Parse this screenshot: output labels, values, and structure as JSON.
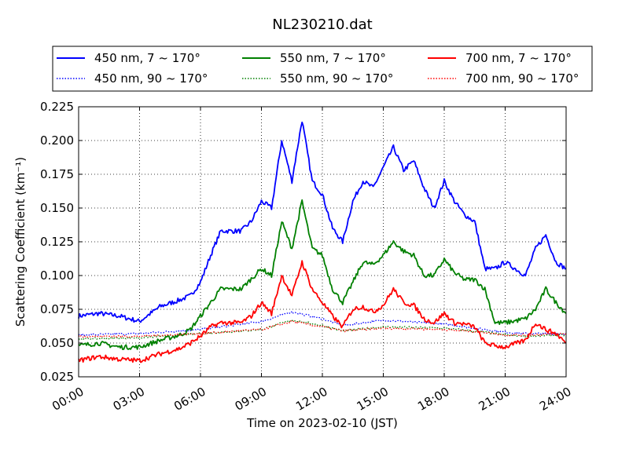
{
  "chart_data": {
    "type": "line",
    "title": "NL230210.dat",
    "xlabel": "Time on 2023-02-10 (JST)",
    "ylabel": "Scattering Coefficient (km⁻¹)",
    "x_unit": "hours",
    "xlim": [
      0,
      24
    ],
    "ylim": [
      0.025,
      0.225
    ],
    "x_ticks": [
      0,
      3,
      6,
      9,
      12,
      15,
      18,
      21,
      24
    ],
    "x_tick_labels": [
      "00:00",
      "03:00",
      "06:00",
      "09:00",
      "12:00",
      "15:00",
      "18:00",
      "21:00",
      "24:00"
    ],
    "y_ticks": [
      0.025,
      0.05,
      0.075,
      0.1,
      0.125,
      0.15,
      0.175,
      0.2,
      0.225
    ],
    "y_tick_labels": [
      "0.025",
      "0.050",
      "0.075",
      "0.100",
      "0.125",
      "0.150",
      "0.175",
      "0.200",
      "0.225"
    ],
    "grid": true,
    "legend_position": "top, above plot, 3 columns",
    "series": [
      {
        "name": "450 nm, 7 ~ 170°",
        "color": "#0000ff",
        "style": "solid",
        "x": [
          0,
          1,
          2,
          3,
          4,
          5,
          5.5,
          6,
          6.5,
          7,
          8,
          8.5,
          9,
          9.5,
          10,
          10.5,
          11,
          11.5,
          12,
          12.5,
          13,
          13.5,
          14,
          14.5,
          15,
          15.5,
          16,
          16.5,
          17,
          17.5,
          18,
          18.5,
          19,
          19.5,
          20,
          20.5,
          21,
          22,
          22.5,
          23,
          23.5,
          24
        ],
        "values": [
          0.07,
          0.072,
          0.07,
          0.066,
          0.077,
          0.082,
          0.085,
          0.095,
          0.115,
          0.133,
          0.133,
          0.14,
          0.155,
          0.15,
          0.2,
          0.17,
          0.215,
          0.17,
          0.16,
          0.135,
          0.125,
          0.155,
          0.17,
          0.165,
          0.18,
          0.195,
          0.178,
          0.185,
          0.165,
          0.15,
          0.17,
          0.155,
          0.145,
          0.14,
          0.105,
          0.105,
          0.11,
          0.1,
          0.12,
          0.13,
          0.11,
          0.105
        ]
      },
      {
        "name": "450 nm, 90 ~ 170°",
        "color": "#0000ff",
        "style": "dotted",
        "x": [
          0,
          3,
          6,
          9,
          10.5,
          12,
          13,
          15,
          18,
          20,
          21,
          22,
          24
        ],
        "values": [
          0.056,
          0.057,
          0.06,
          0.066,
          0.073,
          0.068,
          0.063,
          0.067,
          0.064,
          0.06,
          0.058,
          0.057,
          0.057
        ]
      },
      {
        "name": "550 nm, 7 ~ 170°",
        "color": "#008000",
        "style": "solid",
        "x": [
          0,
          1,
          2,
          3,
          4,
          5,
          5.5,
          6,
          6.5,
          7,
          8,
          9,
          9.5,
          10,
          10.5,
          11,
          11.5,
          12,
          12.5,
          13,
          13.5,
          14,
          14.5,
          15,
          15.5,
          16,
          16.5,
          17,
          17.5,
          18,
          18.5,
          19,
          19.5,
          20,
          20.5,
          21,
          22,
          22.5,
          23,
          23.5,
          24
        ],
        "values": [
          0.048,
          0.05,
          0.047,
          0.047,
          0.052,
          0.056,
          0.06,
          0.07,
          0.08,
          0.09,
          0.09,
          0.105,
          0.1,
          0.14,
          0.12,
          0.155,
          0.12,
          0.115,
          0.09,
          0.08,
          0.095,
          0.11,
          0.108,
          0.115,
          0.125,
          0.118,
          0.115,
          0.1,
          0.1,
          0.112,
          0.102,
          0.097,
          0.097,
          0.09,
          0.065,
          0.065,
          0.068,
          0.075,
          0.09,
          0.08,
          0.072
        ]
      },
      {
        "name": "550 nm, 90 ~ 170°",
        "color": "#008000",
        "style": "dotted",
        "x": [
          0,
          3,
          6,
          9,
          10.5,
          12,
          13,
          15,
          18,
          20,
          21,
          22,
          24
        ],
        "values": [
          0.053,
          0.054,
          0.057,
          0.06,
          0.067,
          0.063,
          0.059,
          0.062,
          0.061,
          0.058,
          0.056,
          0.055,
          0.056
        ]
      },
      {
        "name": "700 nm, 7 ~ 170°",
        "color": "#ff0000",
        "style": "solid",
        "x": [
          0,
          1,
          2,
          3,
          4,
          5,
          5.5,
          6,
          6.5,
          7,
          8,
          8.5,
          9,
          9.5,
          10,
          10.5,
          11,
          11.5,
          12,
          12.5,
          13,
          13.5,
          14,
          14.5,
          15,
          15.5,
          16,
          16.5,
          17,
          17.5,
          18,
          18.5,
          19,
          19.5,
          20,
          20.5,
          21,
          22,
          22.5,
          23,
          23.5,
          24
        ],
        "values": [
          0.037,
          0.04,
          0.038,
          0.037,
          0.042,
          0.046,
          0.05,
          0.055,
          0.062,
          0.065,
          0.065,
          0.07,
          0.08,
          0.072,
          0.1,
          0.085,
          0.11,
          0.09,
          0.08,
          0.07,
          0.062,
          0.075,
          0.077,
          0.073,
          0.078,
          0.09,
          0.08,
          0.078,
          0.068,
          0.065,
          0.072,
          0.065,
          0.064,
          0.062,
          0.05,
          0.048,
          0.047,
          0.052,
          0.065,
          0.06,
          0.057,
          0.05
        ]
      },
      {
        "name": "700 nm, 90 ~ 170°",
        "color": "#ff0000",
        "style": "dotted",
        "x": [
          0,
          3,
          6,
          9,
          10.5,
          12,
          13,
          15,
          18,
          20,
          21,
          22,
          24
        ],
        "values": [
          0.055,
          0.055,
          0.057,
          0.06,
          0.066,
          0.062,
          0.059,
          0.061,
          0.06,
          0.058,
          0.056,
          0.056,
          0.057
        ]
      }
    ]
  }
}
